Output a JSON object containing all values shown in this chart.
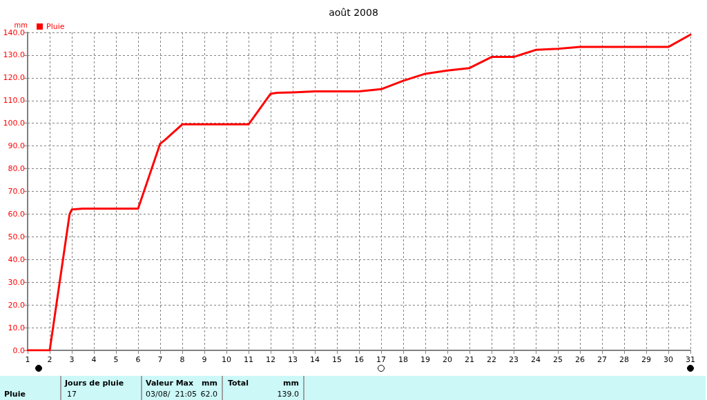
{
  "chart_data": {
    "type": "line",
    "title": "août 2008",
    "ylabel": "mm",
    "series": [
      {
        "name": "Pluie",
        "color": "#ff0000",
        "x": [
          1,
          2,
          2.9,
          3,
          3.5,
          6,
          7,
          7.2,
          8,
          11,
          12,
          12.3,
          13,
          13.5,
          14,
          16,
          17,
          18,
          19,
          20,
          21,
          22,
          23,
          24,
          25,
          26,
          30,
          31
        ],
        "values": [
          0,
          0,
          60,
          62,
          62.4,
          62.4,
          91,
          92.5,
          99.5,
          99.5,
          113,
          113.4,
          113.6,
          113.8,
          114,
          114,
          115,
          118.7,
          121.8,
          123.2,
          124.3,
          129.2,
          129.2,
          132.3,
          132.8,
          133.6,
          133.6,
          139
        ]
      }
    ],
    "xlim": [
      1,
      31
    ],
    "xticks": [
      1,
      2,
      3,
      4,
      5,
      6,
      7,
      8,
      9,
      10,
      11,
      12,
      13,
      14,
      15,
      16,
      17,
      18,
      19,
      20,
      21,
      22,
      23,
      24,
      25,
      26,
      27,
      28,
      29,
      30,
      31
    ],
    "ylim": [
      0,
      140
    ],
    "yticks": [
      {
        "value": 0,
        "label": "0.0"
      },
      {
        "value": 10,
        "label": "10.0"
      },
      {
        "value": 20,
        "label": "20.0"
      },
      {
        "value": 30,
        "label": "30.0"
      },
      {
        "value": 40,
        "label": "40.0"
      },
      {
        "value": 50,
        "label": "50.0"
      },
      {
        "value": 60,
        "label": "60.0"
      },
      {
        "value": 70,
        "label": "70.0"
      },
      {
        "value": 80,
        "label": "80.0"
      },
      {
        "value": 90,
        "label": "90.0"
      },
      {
        "value": 100,
        "label": "100.0"
      },
      {
        "value": 110,
        "label": "110.0"
      },
      {
        "value": 120,
        "label": "120.0"
      },
      {
        "value": 130,
        "label": "130.0"
      },
      {
        "value": 140,
        "label": "140.0"
      }
    ],
    "grid": true,
    "legend": "top left",
    "marker": "none",
    "line_style": "solid",
    "annotations": [
      "Pluie",
      "Jours de pluie",
      "17",
      "Valeur Max",
      "mm",
      "03/08/  21:05",
      "62.0",
      "Total",
      "mm",
      "139.0"
    ]
  }
}
